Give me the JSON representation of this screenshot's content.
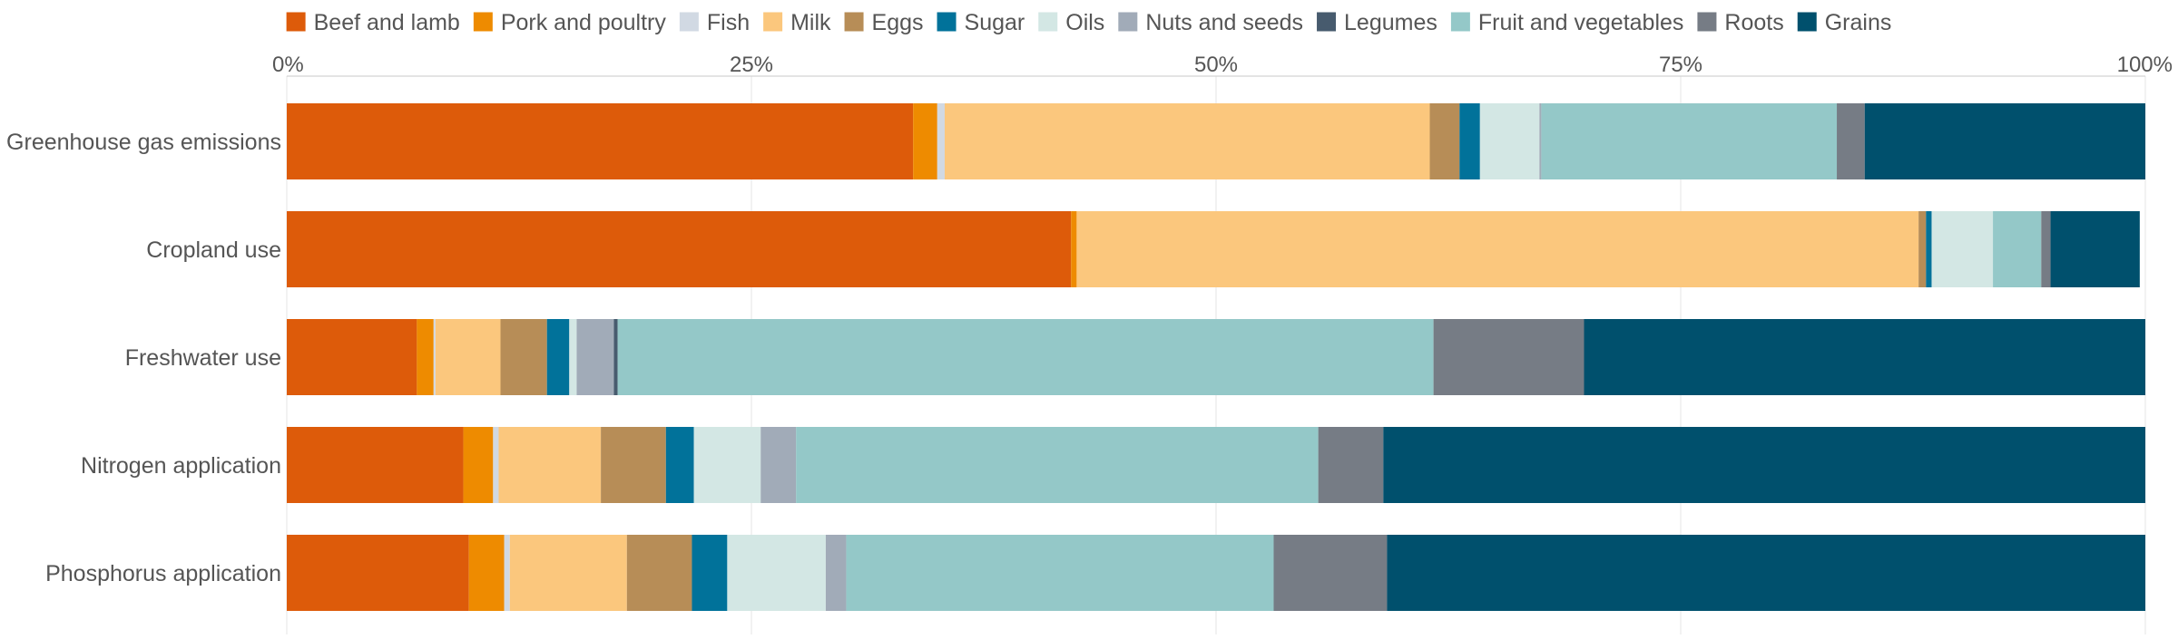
{
  "chart_data": {
    "type": "bar",
    "orientation": "horizontal",
    "stacked": true,
    "xlim": [
      0,
      100
    ],
    "x_ticks": [
      "0%",
      "25%",
      "50%",
      "75%",
      "100%"
    ],
    "x_tick_values": [
      0,
      25,
      50,
      75,
      100
    ],
    "x_axis_position": "top",
    "grid": true,
    "legend_position": "top",
    "categories": [
      "Greenhouse gas emissions",
      "Cropland use",
      "Freshwater use",
      "Nitrogen application",
      "Phosphorus application"
    ],
    "series": [
      {
        "name": "Beef and lamb",
        "color": "#dd5b0a",
        "values": [
          33.7,
          42.2,
          7.0,
          9.5,
          9.8
        ]
      },
      {
        "name": "Pork and poultry",
        "color": "#ee8b00",
        "values": [
          1.3,
          0.3,
          0.9,
          1.6,
          1.9
        ]
      },
      {
        "name": "Fish",
        "color": "#d1d9e3",
        "values": [
          0.4,
          0.0,
          0.1,
          0.3,
          0.3
        ]
      },
      {
        "name": "Milk",
        "color": "#fbc77d",
        "values": [
          26.1,
          45.3,
          3.5,
          5.5,
          6.3
        ]
      },
      {
        "name": "Eggs",
        "color": "#b78d57",
        "values": [
          1.6,
          0.4,
          2.5,
          3.5,
          3.5
        ]
      },
      {
        "name": "Sugar",
        "color": "#01729a",
        "values": [
          1.1,
          0.3,
          1.2,
          1.5,
          1.9
        ]
      },
      {
        "name": "Oils",
        "color": "#d3e7e4",
        "values": [
          3.2,
          3.3,
          0.4,
          3.6,
          5.3
        ]
      },
      {
        "name": "Nuts and seeds",
        "color": "#a1abb8",
        "values": [
          0.1,
          0.0,
          2.0,
          1.9,
          1.1
        ]
      },
      {
        "name": "Legumes",
        "color": "#475b6e",
        "values": [
          0.0,
          0.0,
          0.2,
          0.0,
          0.0
        ]
      },
      {
        "name": "Fruit and vegetables",
        "color": "#94c8c8",
        "values": [
          15.9,
          2.6,
          43.9,
          28.1,
          23.0
        ]
      },
      {
        "name": "Roots",
        "color": "#767c85",
        "values": [
          1.5,
          0.5,
          8.1,
          3.5,
          6.1
        ]
      },
      {
        "name": "Grains",
        "color": "#00506d",
        "values": [
          15.1,
          4.8,
          30.2,
          41.0,
          40.8
        ]
      }
    ]
  }
}
